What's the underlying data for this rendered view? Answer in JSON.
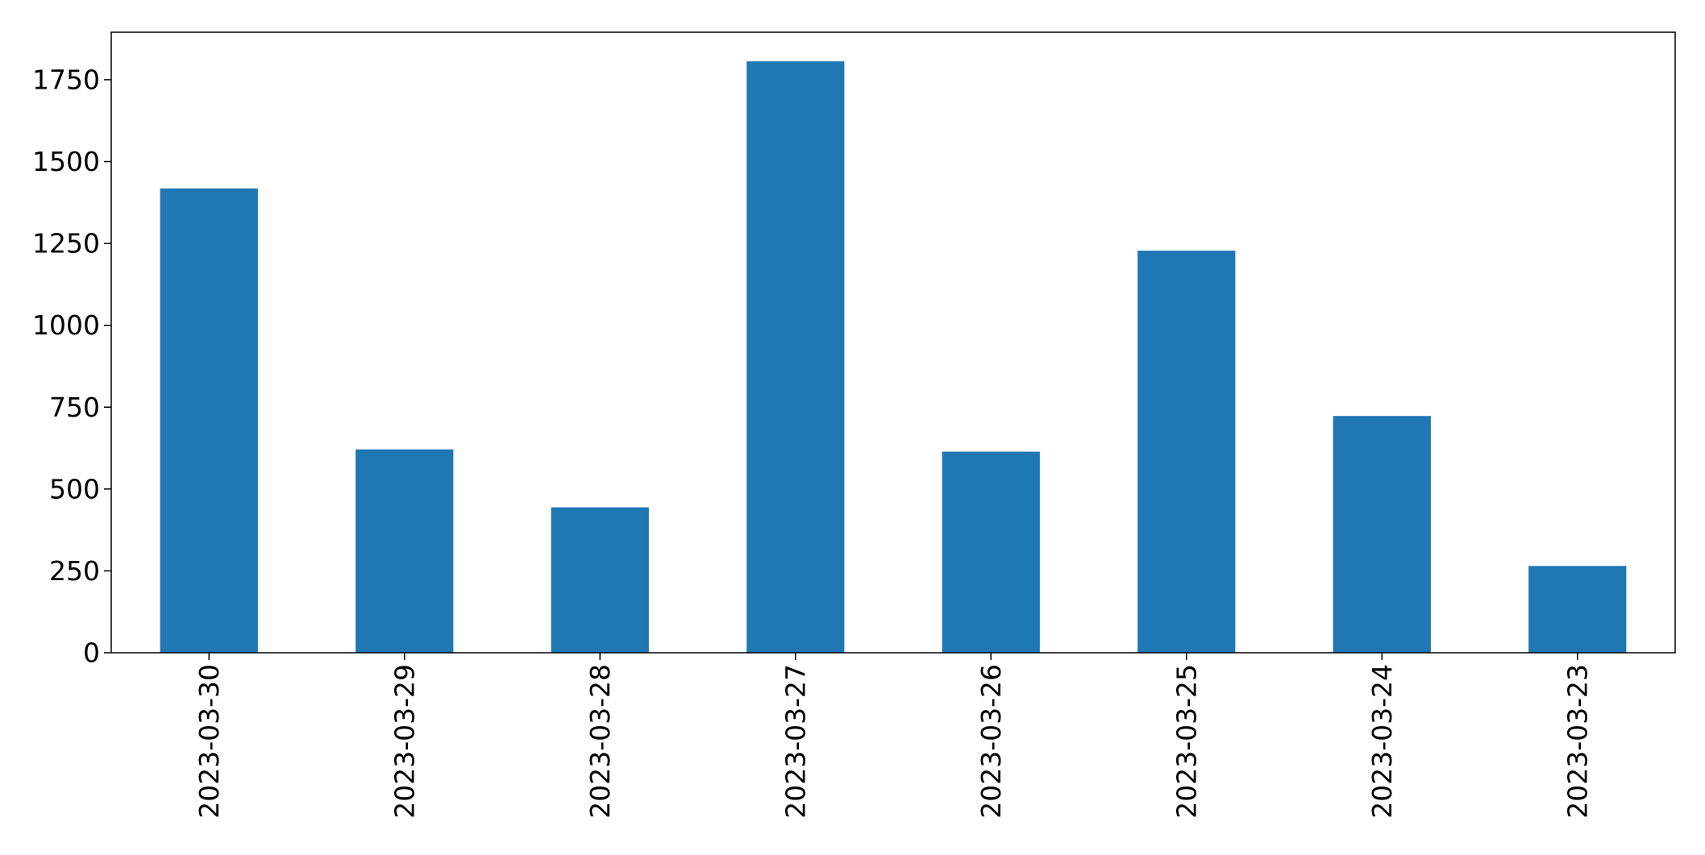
{
  "chart_data": {
    "type": "bar",
    "title": "",
    "xlabel": "",
    "ylabel": "",
    "categories": [
      "2023-03-30",
      "2023-03-29",
      "2023-03-28",
      "2023-03-27",
      "2023-03-26",
      "2023-03-25",
      "2023-03-24",
      "2023-03-23"
    ],
    "values": [
      1418,
      621,
      444,
      1806,
      614,
      1228,
      723,
      265
    ],
    "ylim": [
      0,
      1895
    ],
    "yticks": [
      0,
      250,
      500,
      750,
      1000,
      1250,
      1500,
      1750
    ],
    "ytick_labels": [
      "0",
      "250",
      "500",
      "750",
      "1000",
      "1250",
      "1500",
      "1750"
    ],
    "bar_color": "#1f77b4",
    "grid": false,
    "legend": "none"
  }
}
